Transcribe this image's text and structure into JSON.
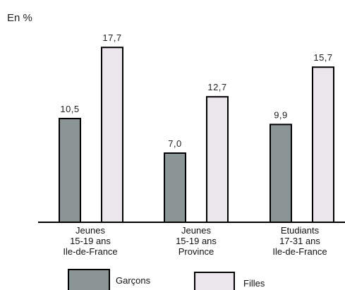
{
  "chart_data": {
    "type": "bar",
    "unit_label": "En %",
    "categories": [
      [
        "Jeunes",
        "15-19 ans",
        "Ile-de-France"
      ],
      [
        "Jeunes",
        "15-19 ans",
        "Province"
      ],
      [
        "Etudiants",
        "17-31 ans",
        "Ile-de-France"
      ]
    ],
    "series": [
      {
        "name": "Garçons",
        "color": "#8c9595",
        "values": [
          10.5,
          7.0,
          9.9
        ],
        "labels": [
          "10,5",
          "7,0",
          "9,9"
        ]
      },
      {
        "name": "Filles",
        "color": "#ebe6ec",
        "values": [
          17.7,
          12.7,
          15.7
        ],
        "labels": [
          "17,7",
          "12,7",
          "15,7"
        ]
      }
    ],
    "ylim": [
      0,
      20
    ],
    "grid": false,
    "legend_position": "bottom"
  }
}
